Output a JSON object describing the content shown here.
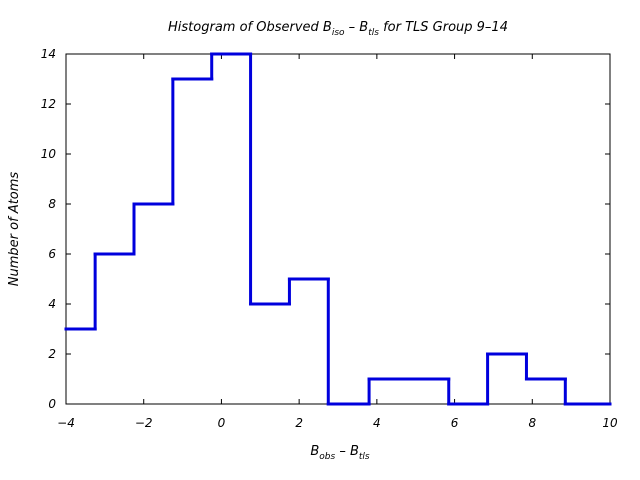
{
  "chart_data": {
    "type": "histogram-step",
    "title": {
      "prefix": "Histogram of Observed B",
      "sub1": "iso",
      "mid": " – B",
      "sub2": "tls",
      "suffix": "  for TLS Group 9–14"
    },
    "xlabel": {
      "main": "B",
      "sub1": "obs",
      "mid": " – B",
      "sub2": "tls"
    },
    "ylabel": "Number of Atoms",
    "xlim": [
      -4,
      10
    ],
    "ylim": [
      0,
      14
    ],
    "xticks": [
      -4,
      -2,
      0,
      2,
      4,
      6,
      8,
      10
    ],
    "yticks": [
      0,
      2,
      4,
      6,
      8,
      10,
      12,
      14
    ],
    "line_color": "#0000dd",
    "bin_edges": [
      -4.0,
      -3.25,
      -2.25,
      -1.25,
      -0.25,
      0.75,
      1.75,
      2.75,
      3.8,
      4.85,
      5.85,
      6.85,
      7.85,
      8.85,
      9.85,
      10.0
    ],
    "counts": [
      3,
      6,
      8,
      13,
      14,
      4,
      5,
      0,
      1,
      1,
      0,
      2,
      1,
      0,
      0
    ],
    "grid": false,
    "legend": "none"
  }
}
